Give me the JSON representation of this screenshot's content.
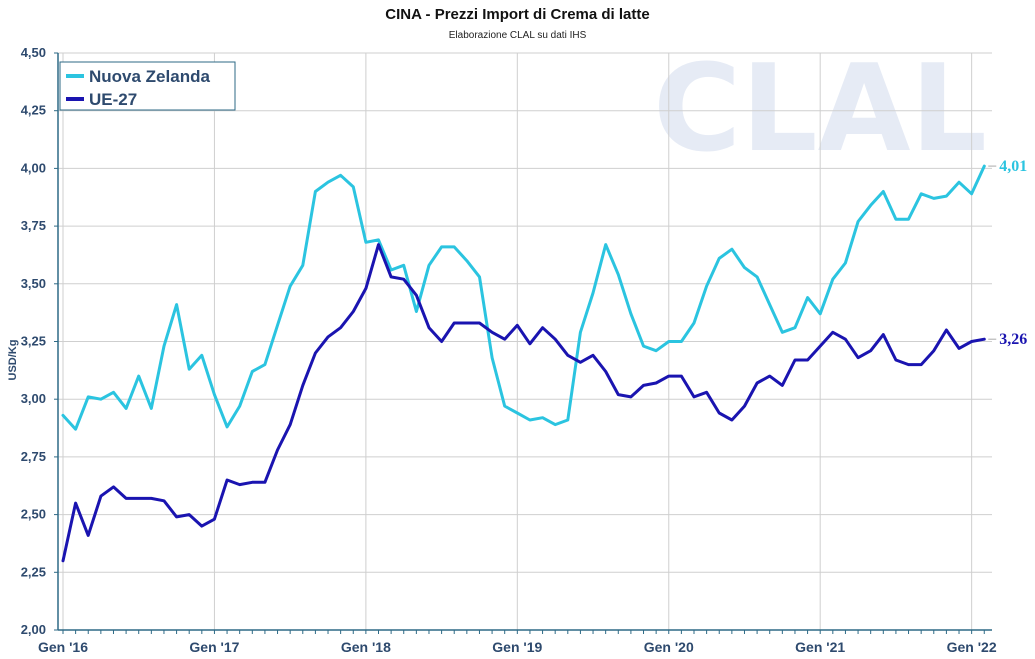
{
  "chart_data": {
    "type": "line",
    "title": "CINA - Prezzi Import di Crema di latte",
    "subtitle": "Elaborazione CLAL su dati IHS",
    "ylabel": "USD/Kg",
    "xlabel": "",
    "ylim": [
      2.0,
      4.5
    ],
    "yticks": [
      "2,00",
      "2,25",
      "2,50",
      "2,75",
      "3,00",
      "3,25",
      "3,50",
      "3,75",
      "4,00",
      "4,25",
      "4,50"
    ],
    "xticks": [
      "Gen '16",
      "Gen '17",
      "Gen '18",
      "Gen '19",
      "Gen '20",
      "Gen '21",
      "Gen '22"
    ],
    "x_start": "2016-01",
    "x_end": "2022-02",
    "grid": true,
    "legend_position": "top-left",
    "watermark": "CLAL",
    "series": [
      {
        "name": "Nuova Zelanda",
        "color": "#2bc4e0",
        "end_label": "4,01",
        "values": [
          2.93,
          2.87,
          3.01,
          3.0,
          3.03,
          2.96,
          3.1,
          2.96,
          3.23,
          3.41,
          3.13,
          3.19,
          3.02,
          2.88,
          2.97,
          3.12,
          3.15,
          3.32,
          3.49,
          3.58,
          3.9,
          3.94,
          3.97,
          3.92,
          3.68,
          3.69,
          3.56,
          3.58,
          3.38,
          3.58,
          3.66,
          3.66,
          3.6,
          3.53,
          3.18,
          2.97,
          2.94,
          2.91,
          2.92,
          2.89,
          2.91,
          3.29,
          3.46,
          3.67,
          3.54,
          3.37,
          3.23,
          3.21,
          3.25,
          3.25,
          3.33,
          3.49,
          3.61,
          3.65,
          3.57,
          3.53,
          3.41,
          3.29,
          3.31,
          3.44,
          3.37,
          3.52,
          3.59,
          3.77,
          3.84,
          3.9,
          3.78,
          3.78,
          3.89,
          3.87,
          3.88,
          3.94,
          3.89,
          4.01
        ]
      },
      {
        "name": "UE-27",
        "color": "#1a14b0",
        "end_label": "3,26",
        "values": [
          2.3,
          2.55,
          2.41,
          2.58,
          2.62,
          2.57,
          2.57,
          2.57,
          2.56,
          2.49,
          2.5,
          2.45,
          2.48,
          2.65,
          2.63,
          2.64,
          2.64,
          2.78,
          2.89,
          3.06,
          3.2,
          3.27,
          3.31,
          3.38,
          3.48,
          3.67,
          3.53,
          3.52,
          3.45,
          3.31,
          3.25,
          3.33,
          3.33,
          3.33,
          3.29,
          3.26,
          3.32,
          3.24,
          3.31,
          3.26,
          3.19,
          3.16,
          3.19,
          3.12,
          3.02,
          3.01,
          3.06,
          3.07,
          3.1,
          3.1,
          3.01,
          3.03,
          2.94,
          2.91,
          2.97,
          3.07,
          3.1,
          3.06,
          3.17,
          3.17,
          3.23,
          3.29,
          3.26,
          3.18,
          3.21,
          3.28,
          3.17,
          3.15,
          3.15,
          3.21,
          3.3,
          3.22,
          3.25,
          3.26
        ]
      }
    ]
  }
}
